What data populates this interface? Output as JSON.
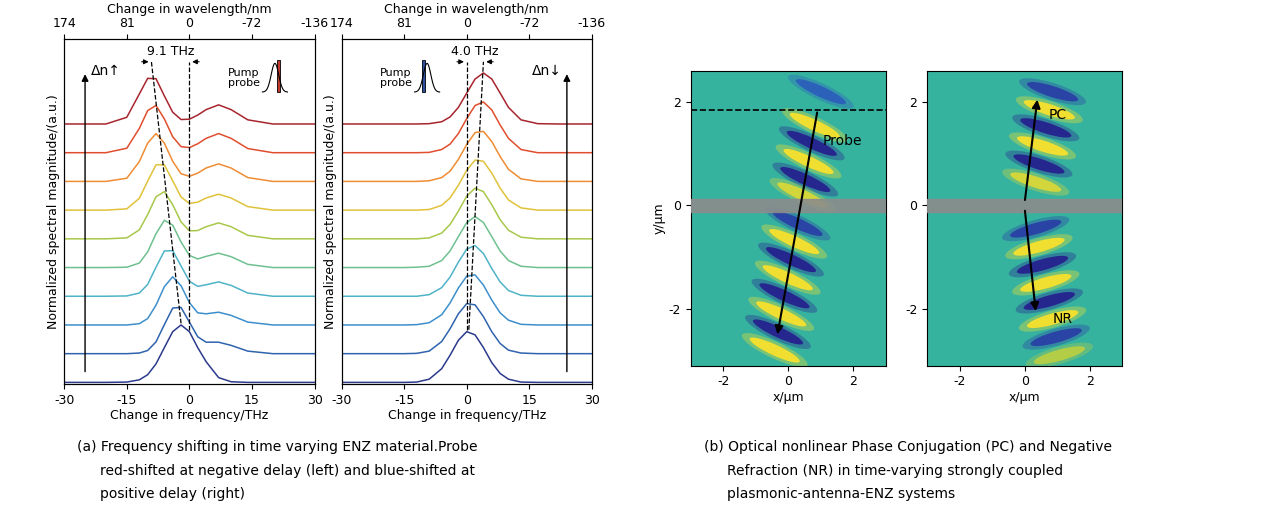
{
  "chart_data": [
    {
      "type": "line",
      "x_label": "Change in frequency/THz",
      "y_label": "Normalized spectral magnitude/(a.u.)",
      "top_axis": {
        "label": "Change in wavelength/nm",
        "ticks": [
          174,
          81,
          0,
          -72,
          -136
        ]
      },
      "xlim": [
        -30,
        30
      ],
      "xticks": [
        -30,
        -15,
        0,
        15,
        30
      ],
      "ylim": [
        0,
        10.8
      ],
      "tick_labels": "x",
      "x": [
        -30,
        -20,
        -15,
        -12,
        -10,
        -8,
        -6,
        -4,
        -2,
        0,
        2,
        4,
        7,
        10,
        14,
        20,
        30
      ],
      "series": [
        {
          "color": "#2b3a8c",
          "values": [
            0.05,
            0.05,
            0.06,
            0.13,
            0.29,
            0.63,
            1.14,
            1.64,
            1.85,
            1.64,
            1.14,
            0.7,
            0.2,
            0.07,
            0.05,
            0.05,
            0.05
          ]
        },
        {
          "color": "#2f63ad",
          "values": [
            0.95,
            0.95,
            0.95,
            0.97,
            1.05,
            1.32,
            1.86,
            2.38,
            2.4,
            1.94,
            1.48,
            1.31,
            1.31,
            1.21,
            1.03,
            0.95,
            0.95
          ]
        },
        {
          "color": "#3d8fcc",
          "values": [
            1.85,
            1.85,
            1.85,
            1.89,
            2.05,
            2.47,
            3.05,
            3.36,
            3.08,
            2.55,
            2.23,
            2.2,
            2.25,
            2.15,
            1.94,
            1.85,
            1.85
          ]
        },
        {
          "color": "#4fb3c8",
          "values": [
            2.75,
            2.75,
            2.76,
            2.85,
            3.12,
            3.66,
            4.17,
            4.18,
            3.7,
            3.22,
            3.06,
            3.11,
            3.2,
            3.09,
            2.85,
            2.75,
            2.75
          ]
        },
        {
          "color": "#6fc08f",
          "values": [
            3.65,
            3.65,
            3.66,
            3.79,
            4.14,
            4.71,
            5.13,
            4.98,
            4.45,
            4.03,
            3.92,
            4.0,
            4.1,
            3.99,
            3.75,
            3.65,
            3.65
          ]
        },
        {
          "color": "#a8c84a",
          "values": [
            4.55,
            4.55,
            4.58,
            4.83,
            5.31,
            5.87,
            6.03,
            5.62,
            5.08,
            4.8,
            4.81,
            4.93,
            5.05,
            4.93,
            4.66,
            4.55,
            4.55
          ]
        },
        {
          "color": "#e0c23a",
          "values": [
            5.45,
            5.45,
            5.49,
            5.82,
            6.36,
            6.87,
            6.87,
            6.37,
            5.86,
            5.66,
            5.7,
            5.83,
            5.95,
            5.83,
            5.56,
            5.45,
            5.45
          ]
        },
        {
          "color": "#f08c34",
          "values": [
            6.35,
            6.35,
            6.45,
            6.97,
            7.55,
            7.85,
            7.55,
            6.98,
            6.59,
            6.51,
            6.61,
            6.77,
            6.9,
            6.77,
            6.47,
            6.35,
            6.35
          ]
        },
        {
          "color": "#e04e2e",
          "values": [
            7.25,
            7.25,
            7.39,
            8.01,
            8.57,
            8.73,
            8.31,
            7.75,
            7.44,
            7.41,
            7.53,
            7.7,
            7.85,
            7.7,
            7.38,
            7.25,
            7.25
          ]
        },
        {
          "color": "#a8252e",
          "values": [
            8.15,
            8.15,
            8.36,
            9.09,
            9.58,
            9.57,
            9.03,
            8.52,
            8.29,
            8.3,
            8.43,
            8.6,
            8.75,
            8.6,
            8.28,
            8.15,
            8.15
          ]
        }
      ],
      "guide_lines": [
        {
          "x": [
            0,
            0
          ],
          "y": [
            1.7,
            10.1
          ]
        },
        {
          "x": [
            -2,
            -9.1
          ],
          "y": [
            1.9,
            10.1
          ]
        }
      ],
      "spans": [
        {
          "text": "9.1 THz",
          "x_from": -9.1,
          "x_to": 0,
          "y": 10.1
        }
      ],
      "arrows": [
        {
          "text": "Δn↑",
          "x": -25,
          "y_from": 0.3,
          "y_to": 9.8
        }
      ],
      "texts": [
        {
          "text": "Pump\nprobe",
          "x": 13,
          "y": 9.6
        }
      ]
    },
    {
      "type": "line",
      "x_label": "Change in frequency/THz",
      "y_label": "Normalized spectral magnitude/(a.u.)",
      "top_axis": {
        "label": "Change in wavelength/nm",
        "ticks": [
          174,
          81,
          0,
          -72,
          -136
        ]
      },
      "xlim": [
        -30,
        30
      ],
      "xticks": [
        -30,
        -15,
        0,
        15,
        30
      ],
      "ylim": [
        0,
        10.8
      ],
      "tick_labels": "x",
      "x": [
        -30,
        -20,
        -15,
        -12,
        -9,
        -6,
        -4,
        -2,
        0,
        2,
        4,
        6,
        8,
        10,
        13,
        17,
        22,
        30
      ],
      "series": [
        {
          "color": "#2b3a8c",
          "values": [
            0.05,
            0.05,
            0.05,
            0.06,
            0.15,
            0.48,
            0.9,
            1.37,
            1.64,
            1.54,
            1.14,
            0.67,
            0.33,
            0.15,
            0.06,
            0.05,
            0.05,
            0.05
          ]
        },
        {
          "color": "#2f63ad",
          "values": [
            0.95,
            0.95,
            0.95,
            0.96,
            1.03,
            1.33,
            1.73,
            2.2,
            2.52,
            2.48,
            2.11,
            1.64,
            1.27,
            1.06,
            0.97,
            0.95,
            0.95,
            0.95
          ]
        },
        {
          "color": "#3d8fcc",
          "values": [
            1.85,
            1.85,
            1.85,
            1.86,
            1.92,
            2.17,
            2.54,
            3.01,
            3.38,
            3.42,
            3.1,
            2.63,
            2.23,
            2.0,
            1.87,
            1.85,
            1.85,
            1.85
          ]
        },
        {
          "color": "#4fb3c8",
          "values": [
            2.75,
            2.75,
            2.75,
            2.75,
            2.8,
            3.02,
            3.35,
            3.82,
            4.23,
            4.34,
            4.09,
            3.62,
            3.2,
            2.93,
            2.78,
            2.75,
            2.75,
            2.75
          ]
        },
        {
          "color": "#6fc08f",
          "values": [
            3.65,
            3.65,
            3.65,
            3.66,
            3.69,
            3.87,
            4.17,
            4.62,
            5.06,
            5.25,
            5.06,
            4.62,
            4.17,
            3.87,
            3.69,
            3.65,
            3.65,
            3.65
          ]
        },
        {
          "color": "#a8c84a",
          "values": [
            4.55,
            4.55,
            4.55,
            4.55,
            4.58,
            4.73,
            5.0,
            5.42,
            5.89,
            6.14,
            6.03,
            5.62,
            5.15,
            4.82,
            4.6,
            4.55,
            4.55,
            4.55
          ]
        },
        {
          "color": "#e0c23a",
          "values": [
            5.45,
            5.45,
            5.45,
            5.45,
            5.47,
            5.6,
            5.83,
            6.23,
            6.7,
            7.02,
            6.98,
            6.61,
            6.14,
            5.77,
            5.52,
            5.45,
            5.45,
            5.45
          ]
        },
        {
          "color": "#f08c34",
          "values": [
            6.35,
            6.35,
            6.35,
            6.35,
            6.37,
            6.47,
            6.67,
            7.04,
            7.51,
            7.88,
            7.92,
            7.6,
            7.13,
            6.73,
            6.43,
            6.35,
            6.35,
            6.35
          ]
        },
        {
          "color": "#e04e2e",
          "values": [
            7.25,
            7.25,
            7.25,
            7.25,
            7.26,
            7.35,
            7.52,
            7.85,
            8.32,
            8.73,
            8.84,
            8.59,
            8.12,
            7.7,
            7.35,
            7.25,
            7.25,
            7.25
          ]
        },
        {
          "color": "#a8252e",
          "values": [
            8.15,
            8.15,
            8.15,
            8.15,
            8.16,
            8.22,
            8.37,
            8.67,
            9.12,
            9.56,
            9.75,
            9.56,
            9.12,
            8.67,
            8.28,
            8.16,
            8.15,
            8.15
          ]
        }
      ],
      "guide_lines": [
        {
          "x": [
            0,
            0
          ],
          "y": [
            1.7,
            10.1
          ]
        },
        {
          "x": [
            0.5,
            4.0
          ],
          "y": [
            1.7,
            10.1
          ]
        }
      ],
      "spans": [
        {
          "text": "4.0 THz",
          "x_from": 0,
          "x_to": 4.0,
          "y": 10.1
        }
      ],
      "arrows": [
        {
          "text": "Δn↓",
          "x": 24,
          "y_from": 0.3,
          "y_to": 9.8
        }
      ],
      "texts": [
        {
          "text": "Pump\nprobe",
          "x": -17,
          "y": 9.6
        }
      ]
    },
    {
      "type": "field_map",
      "x_label": "x/µm",
      "y_label": "y/µm",
      "xlim": [
        -3,
        3
      ],
      "xticks": [
        -2,
        0,
        2
      ],
      "ylim": [
        -3.1,
        2.6
      ],
      "yticks": [
        -2,
        0,
        2
      ],
      "value_range": [
        -1,
        1
      ],
      "layer_y": 0,
      "dashed_line_y": 1.85,
      "arrows": [
        {
          "text": "Probe",
          "from": [
            0.9,
            1.85
          ],
          "to": [
            -0.35,
            -2.55
          ],
          "text_at": [
            1.05,
            1.25
          ]
        }
      ],
      "field_blobs": [
        {
          "x": 1.0,
          "y": 2.2,
          "value": -0.6
        },
        {
          "x": 0.81,
          "y": 1.55,
          "value": 1
        },
        {
          "x": 0.72,
          "y": 1.2,
          "value": -1
        },
        {
          "x": 0.62,
          "y": 0.85,
          "value": 1
        },
        {
          "x": 0.52,
          "y": 0.5,
          "value": -1
        },
        {
          "x": 0.43,
          "y": 0.2,
          "value": 0.8
        },
        {
          "x": 0.28,
          "y": -0.35,
          "value": -0.8
        },
        {
          "x": 0.18,
          "y": -0.7,
          "value": 1
        },
        {
          "x": 0.08,
          "y": -1.05,
          "value": -1
        },
        {
          "x": -0.02,
          "y": -1.4,
          "value": 1
        },
        {
          "x": -0.12,
          "y": -1.75,
          "value": -1
        },
        {
          "x": -0.22,
          "y": -2.1,
          "value": 1
        },
        {
          "x": -0.32,
          "y": -2.45,
          "value": -1
        },
        {
          "x": -0.42,
          "y": -2.8,
          "value": 1
        }
      ]
    },
    {
      "type": "field_map",
      "x_label": "x/µm",
      "xlim": [
        -3,
        3
      ],
      "xticks": [
        -2,
        0,
        2
      ],
      "ylim": [
        -3.1,
        2.6
      ],
      "yticks": [
        -2,
        0,
        2
      ],
      "value_range": [
        -1,
        1
      ],
      "layer_y": 0,
      "arrows": [
        {
          "text": "PC",
          "from": [
            0,
            0.05
          ],
          "to": [
            0.4,
            2.1
          ],
          "text_at": [
            0.75,
            1.75
          ]
        },
        {
          "text": "NR",
          "from": [
            0,
            -0.05
          ],
          "to": [
            0.35,
            -2.1
          ],
          "text_at": [
            0.85,
            -2.2
          ]
        }
      ],
      "field_blobs": [
        {
          "x": 0.34,
          "y": 0.45,
          "value": 0.8
        },
        {
          "x": 0.44,
          "y": 0.8,
          "value": -1
        },
        {
          "x": 0.55,
          "y": 1.15,
          "value": 1
        },
        {
          "x": 0.65,
          "y": 1.5,
          "value": -1
        },
        {
          "x": 0.76,
          "y": 1.85,
          "value": 1
        },
        {
          "x": 0.86,
          "y": 2.2,
          "value": -0.8
        },
        {
          "x": 0.34,
          "y": -0.45,
          "value": -0.8
        },
        {
          "x": 0.44,
          "y": -0.8,
          "value": 1
        },
        {
          "x": 0.55,
          "y": -1.15,
          "value": -1
        },
        {
          "x": 0.65,
          "y": -1.5,
          "value": 1
        },
        {
          "x": 0.76,
          "y": -1.85,
          "value": -1
        },
        {
          "x": 0.86,
          "y": -2.2,
          "value": 1
        },
        {
          "x": 0.97,
          "y": -2.55,
          "value": -0.8
        },
        {
          "x": 1.07,
          "y": -2.9,
          "value": 0.6
        }
      ]
    }
  ],
  "figure": {
    "captions": [
      {
        "lines": [
          "(a) Frequency shifting in time varying ENZ material.Probe",
          "red-shifted at negative delay (left) and blue-shifted at",
          "positive delay (right)"
        ]
      },
      {
        "lines": [
          "(b) Optical nonlinear Phase Conjugation (PC) and Negative",
          "Refraction (NR) in time-varying strongly coupled",
          "plasmonic-antenna-ENZ systems"
        ]
      }
    ]
  }
}
